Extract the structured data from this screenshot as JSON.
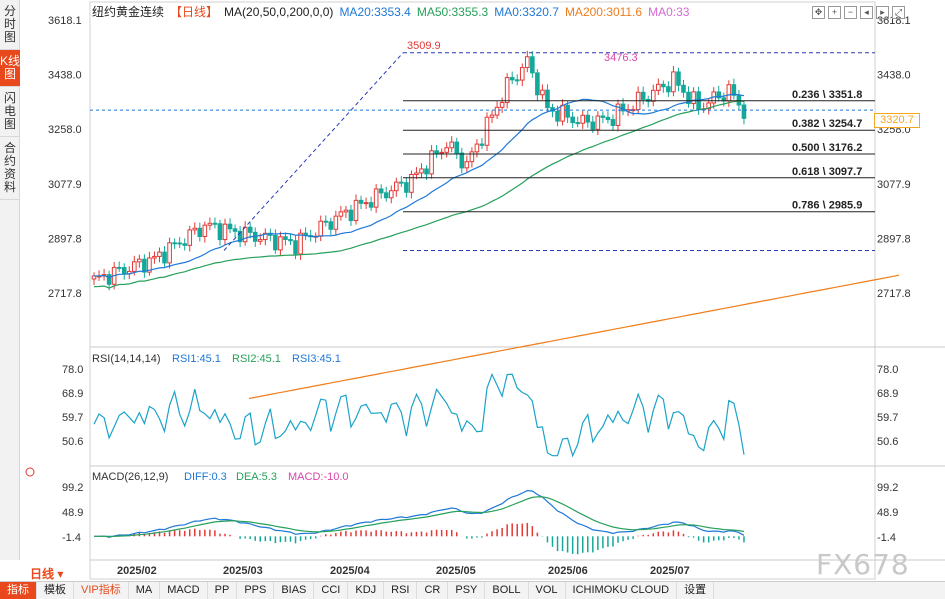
{
  "side_tabs": [
    "分时图",
    "K线图",
    "闪电图",
    "合约资料"
  ],
  "header": {
    "instrument": "纽约黄金连续",
    "period_tag": "【日线】",
    "ma_params": "MA(20,50,0,200,0,0)",
    "ma20": "MA20:3353.4",
    "ma50": "MA50:3355.3",
    "ma0a": "MA0:3320.7",
    "ma200": "MA200:3011.6",
    "ma0b": "MA0:33"
  },
  "price_axis": {
    "labels": [
      "3618.1",
      "3438.0",
      "3258.0",
      "3077.9",
      "2897.8",
      "2717.8"
    ],
    "values": [
      3618.1,
      3438.0,
      3258.0,
      3077.9,
      2897.8,
      2717.8
    ],
    "current_price": "3320.7"
  },
  "annotations": {
    "high_1": "3509.9",
    "high_2": "3476.3"
  },
  "fibonacci": [
    {
      "label": "0.236 \\ 3351.8",
      "price": 3351.8
    },
    {
      "label": "0.382 \\ 3254.7",
      "price": 3254.7
    },
    {
      "label": "0.500 \\ 3176.2",
      "price": 3176.2
    },
    {
      "label": "0.618 \\ 3097.7",
      "price": 3097.7
    },
    {
      "label": "0.786 \\ 2985.9",
      "price": 2985.9
    }
  ],
  "rsi": {
    "title": "RSI(14,14,14)",
    "rsi1": "RSI1:45.1",
    "rsi2": "RSI2:45.1",
    "rsi3": "RSI3:45.1",
    "labels": [
      "78.0",
      "68.9",
      "59.7",
      "50.6"
    ],
    "values": [
      78.0,
      68.9,
      59.7,
      50.6
    ]
  },
  "macd": {
    "title": "MACD(26,12,9)",
    "diff": "DIFF:0.3",
    "dea": "DEA:5.3",
    "macd": "MACD:-10.0",
    "labels": [
      "99.2",
      "48.9",
      "-1.4"
    ],
    "values": [
      99.2,
      48.9,
      -1.4
    ]
  },
  "x_axis": [
    "2025/02",
    "2025/03",
    "2025/04",
    "2025/05",
    "2025/06",
    "2025/07"
  ],
  "period_button": "日线",
  "bottom_tabs": [
    "指标",
    "模板",
    "VIP指标",
    "MA",
    "MACD",
    "PP",
    "PPS",
    "BIAS",
    "CCI",
    "KDJ",
    "RSI",
    "CR",
    "PSY",
    "BOLL",
    "VOL",
    "ICHIMOKU CLOUD",
    "设置"
  ],
  "watermark": "FX678",
  "colors": {
    "up": "#e53935",
    "down": "#14a89a",
    "ma20": "#1e78d7",
    "ma50": "#27a05a",
    "ma200": "#f07d1a",
    "accent": "#e8481b"
  }
}
